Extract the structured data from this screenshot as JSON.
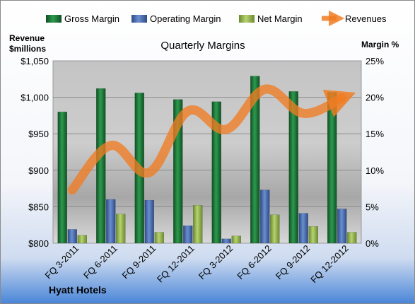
{
  "chart_data": {
    "type": "bar",
    "title": "Quarterly Margins",
    "footer": "Hyatt Hotels",
    "categories": [
      "FQ 3-2011",
      "FQ 6-2011",
      "FQ 9-2011",
      "FQ 12-2011",
      "FQ 3-2012",
      "FQ 6-2012",
      "FQ 9-2012",
      "FQ 12-2012"
    ],
    "series": [
      {
        "name": "Gross Margin",
        "axis": "right",
        "color": "#1f7a3a",
        "values": [
          18.0,
          21.2,
          20.6,
          19.7,
          19.4,
          22.9,
          20.8,
          20.7
        ]
      },
      {
        "name": "Operating Margin",
        "axis": "right",
        "color": "#4a6fb3",
        "values": [
          1.9,
          6.0,
          5.9,
          2.4,
          0.6,
          7.3,
          4.1,
          4.7
        ]
      },
      {
        "name": "Net Margin",
        "axis": "right",
        "color": "#9bbb59",
        "values": [
          1.1,
          4.0,
          1.5,
          5.2,
          1.0,
          3.9,
          2.3,
          1.5
        ]
      },
      {
        "name": "Revenues",
        "axis": "left",
        "type": "line",
        "color": "#f07c22",
        "values": [
          873,
          934,
          897,
          981,
          956,
          1011,
          978,
          999
        ]
      }
    ],
    "left_axis": {
      "label_line1": "Revenue",
      "label_line2": "$millions",
      "min": 800,
      "max": 1050,
      "ticks": [
        "$800",
        "$850",
        "$900",
        "$950",
        "$1,000",
        "$1,050"
      ]
    },
    "right_axis": {
      "label": "Margin %",
      "min": 0,
      "max": 25,
      "ticks": [
        "0%",
        "5%",
        "10%",
        "15%",
        "20%",
        "25%"
      ]
    },
    "grid": true,
    "legend_position": "top"
  }
}
